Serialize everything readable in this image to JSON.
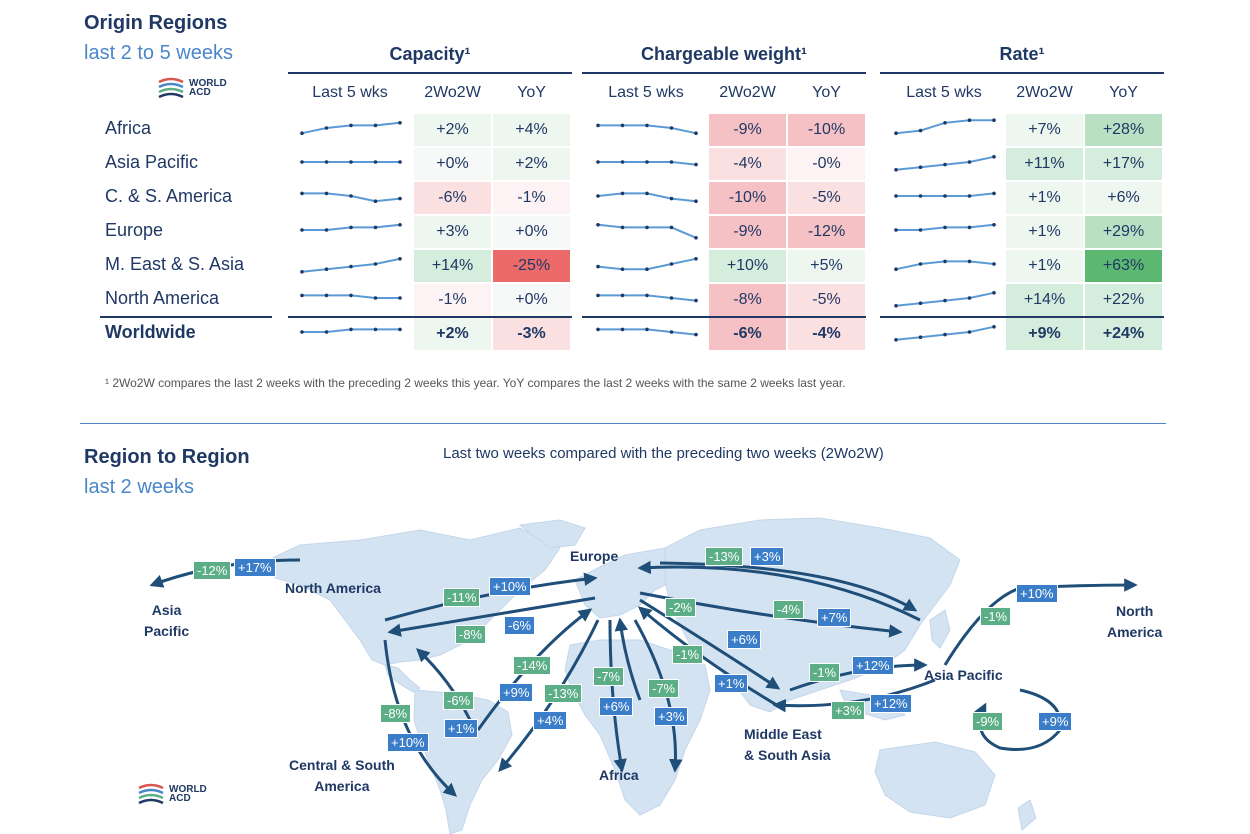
{
  "origin": {
    "title": "Origin Regions",
    "subtitle": "last 2 to 5 weeks",
    "groups": [
      {
        "title": "Capacity¹"
      },
      {
        "title": "Chargeable weight¹"
      },
      {
        "title": "Rate¹"
      }
    ],
    "subheads": [
      "Last 5 wks",
      "2Wo2W",
      "YoY"
    ]
  },
  "logo": {
    "line1": "WORLD",
    "line2": "ACD"
  },
  "chart_data": [
    {
      "type": "table",
      "title": "Origin Regions – last 2 to 5 weeks",
      "columns": [
        "Capacity 2Wo2W",
        "Capacity YoY",
        "Chargeable weight 2Wo2W",
        "Chargeable weight YoY",
        "Rate 2Wo2W",
        "Rate YoY"
      ],
      "rows": [
        {
          "label": "Africa",
          "values": [
            "+2%",
            "+4%",
            "-9%",
            "-10%",
            "+7%",
            "+28%"
          ],
          "spark": [
            [
              3,
              5,
              6,
              6,
              7
            ],
            [
              6,
              6,
              6,
              5,
              3
            ],
            [
              3,
              4,
              7,
              8,
              8
            ]
          ]
        },
        {
          "label": "Asia Pacific",
          "values": [
            "+0%",
            "+2%",
            "-4%",
            "-0%",
            "+11%",
            "+17%"
          ],
          "spark": [
            [
              5,
              5,
              5,
              5,
              5
            ],
            [
              5,
              5,
              5,
              5,
              4
            ],
            [
              2,
              3,
              4,
              5,
              7
            ]
          ]
        },
        {
          "label": "C. & S. America",
          "values": [
            "-6%",
            "-1%",
            "-10%",
            "-5%",
            "+1%",
            "+6%"
          ],
          "spark": [
            [
              6,
              6,
              5,
              3,
              4
            ],
            [
              5,
              6,
              6,
              4,
              3
            ],
            [
              5,
              5,
              5,
              5,
              6
            ]
          ]
        },
        {
          "label": "Europe",
          "values": [
            "+3%",
            "+0%",
            "-9%",
            "-12%",
            "+1%",
            "+29%"
          ],
          "spark": [
            [
              5,
              5,
              6,
              6,
              7
            ],
            [
              7,
              6,
              6,
              6,
              2
            ],
            [
              5,
              5,
              6,
              6,
              7
            ]
          ]
        },
        {
          "label": "M. East & S. Asia",
          "values": [
            "+14%",
            "-25%",
            "+10%",
            "+5%",
            "+1%",
            "+63%"
          ],
          "spark": [
            [
              2,
              3,
              4,
              5,
              7
            ],
            [
              4,
              3,
              3,
              5,
              7
            ],
            [
              3,
              5,
              6,
              6,
              5
            ]
          ]
        },
        {
          "label": "North America",
          "values": [
            "-1%",
            "+0%",
            "-8%",
            "-5%",
            "+14%",
            "+22%"
          ],
          "spark": [
            [
              6,
              6,
              6,
              5,
              5
            ],
            [
              6,
              6,
              6,
              5,
              4
            ],
            [
              2,
              3,
              4,
              5,
              7
            ]
          ]
        },
        {
          "label": "Worldwide",
          "values": [
            "+2%",
            "-3%",
            "-6%",
            "-4%",
            "+9%",
            "+24%"
          ],
          "spark": [
            [
              5,
              5,
              6,
              6,
              6
            ],
            [
              6,
              6,
              6,
              5,
              4
            ],
            [
              2,
              3,
              4,
              5,
              7
            ]
          ],
          "bold": true
        }
      ],
      "cell_colors": [
        [
          "#eef6f0",
          "#eef6f0",
          "#f6c1c5",
          "#f6c1c5",
          "#eef6f0",
          "#b9e0c2"
        ],
        [
          "#f7f9f8",
          "#eef6f0",
          "#fbe0e2",
          "#fdf3f4",
          "#d5eddc",
          "#d5eddc"
        ],
        [
          "#fbe0e2",
          "#fdf3f4",
          "#f6c1c5",
          "#fbe0e2",
          "#eef6f0",
          "#eef6f0"
        ],
        [
          "#eef6f0",
          "#f7f9f8",
          "#f6c1c5",
          "#f6c1c5",
          "#eef6f0",
          "#b9e0c2"
        ],
        [
          "#d5eddc",
          "#ec6a6a",
          "#d5eddc",
          "#eef6f0",
          "#eef6f0",
          "#5cb870"
        ],
        [
          "#fdf3f4",
          "#f7f9f8",
          "#f6c1c5",
          "#fbe0e2",
          "#d5eddc",
          "#d5eddc"
        ],
        [
          "#eef6f0",
          "#fbe0e2",
          "#f6c1c5",
          "#fbe0e2",
          "#d5eddc",
          "#d5eddc"
        ]
      ]
    },
    {
      "type": "map",
      "title": "Last two weeks compared with the preceding two weeks (2Wo2W)",
      "regions": [
        "North America",
        "Asia Pacific",
        "Europe",
        "Middle East & South Asia",
        "Africa",
        "Central & South America"
      ],
      "flows": [
        {
          "from": "North America",
          "to": "Asia Pacific",
          "values": [
            "-12%",
            "+17%"
          ]
        },
        {
          "from": "Europe",
          "to": "Asia Pacific",
          "values": [
            "-13%",
            "+3%"
          ]
        },
        {
          "from": "North America",
          "to": "Europe",
          "values": [
            "-11%",
            "+10%"
          ]
        },
        {
          "from": "Europe",
          "to": "North America",
          "values": [
            "-8%",
            "-6%"
          ]
        },
        {
          "from": "Europe",
          "to": "Middle East & South Asia",
          "values": [
            "-2%",
            "+6%"
          ]
        },
        {
          "from": "Asia Pacific",
          "to": "Europe",
          "values": [
            "-4%",
            "+7%"
          ]
        },
        {
          "from": "Asia Pacific",
          "to": "North America",
          "values": [
            "-1%",
            "+10%"
          ]
        },
        {
          "from": "Central & South America",
          "to": "Europe",
          "values": [
            "-14%",
            "+9%"
          ]
        },
        {
          "from": "Europe",
          "to": "Central & South America",
          "values": [
            "-13%",
            "+4%"
          ]
        },
        {
          "from": "Europe",
          "to": "Africa",
          "values": [
            "-7%",
            "+6%"
          ]
        },
        {
          "from": "Africa",
          "to": "Europe",
          "values": [
            "-7%",
            "+3%"
          ]
        },
        {
          "from": "Middle East & South Asia",
          "to": "Europe",
          "values": [
            "-1%",
            "+1%"
          ]
        },
        {
          "from": "Middle East & South Asia",
          "to": "Asia Pacific",
          "values": [
            "-1%",
            "+12%"
          ]
        },
        {
          "from": "Asia Pacific",
          "to": "Middle East & South Asia",
          "values": [
            "+3%",
            "+12%"
          ]
        },
        {
          "from": "Central & South America",
          "to": "North America",
          "values": [
            "-6%",
            "+1%"
          ]
        },
        {
          "from": "North America",
          "to": "Central & South America",
          "values": [
            "-8%",
            "+10%"
          ]
        },
        {
          "from": "Asia Pacific",
          "to": "Asia Pacific",
          "values": [
            "-9%",
            "+9%"
          ]
        }
      ]
    }
  ],
  "footnote": "¹ 2Wo2W compares the last 2 weeks with the preceding 2 weeks this year. YoY compares the last 2 weeks with the same 2 weeks last year.",
  "r2r": {
    "title": "Region to Region",
    "subtitle": "last 2 weeks",
    "caption": "Last two weeks compared with the preceding two weeks (2Wo2W)"
  },
  "map_labels": {
    "asia_pacific_left_1": "Asia",
    "asia_pacific_left_2": "Pacific",
    "north_america": "North America",
    "europe": "Europe",
    "north_america_right_1": "North",
    "north_america_right_2": "America",
    "asia_pacific": "Asia Pacific",
    "middle_east_1": "Middle East",
    "middle_east_2": "& South Asia",
    "africa": "Africa",
    "csa_1": "Central & South",
    "csa_2": "America"
  },
  "map_boxes": [
    {
      "id": "na-ap-1",
      "text": "-12%",
      "color": "green"
    },
    {
      "id": "na-ap-2",
      "text": "+17%",
      "color": "blue"
    },
    {
      "id": "eu-ap-1",
      "text": "-13%",
      "color": "green"
    },
    {
      "id": "eu-ap-2",
      "text": "+3%",
      "color": "blue"
    },
    {
      "id": "na-eu-1",
      "text": "-11%",
      "color": "green"
    },
    {
      "id": "na-eu-2",
      "text": "+10%",
      "color": "blue"
    },
    {
      "id": "eu-na-1",
      "text": "-8%",
      "color": "green"
    },
    {
      "id": "eu-na-2",
      "text": "-6%",
      "color": "blue"
    },
    {
      "id": "eu-me-1",
      "text": "-2%",
      "color": "green"
    },
    {
      "id": "eu-me-2",
      "text": "+6%",
      "color": "blue"
    },
    {
      "id": "ap-eu-1",
      "text": "-4%",
      "color": "green"
    },
    {
      "id": "ap-eu-2",
      "text": "+7%",
      "color": "blue"
    },
    {
      "id": "ap-na-1",
      "text": "-1%",
      "color": "green"
    },
    {
      "id": "ap-na-2",
      "text": "+10%",
      "color": "blue"
    },
    {
      "id": "csa-eu-1",
      "text": "-14%",
      "color": "green"
    },
    {
      "id": "csa-eu-2",
      "text": "+9%",
      "color": "blue"
    },
    {
      "id": "eu-csa-1",
      "text": "-13%",
      "color": "green"
    },
    {
      "id": "eu-csa-2",
      "text": "+4%",
      "color": "blue"
    },
    {
      "id": "eu-af-1",
      "text": "-7%",
      "color": "green"
    },
    {
      "id": "eu-af-2",
      "text": "+6%",
      "color": "blue"
    },
    {
      "id": "af-eu-1",
      "text": "-7%",
      "color": "green"
    },
    {
      "id": "af-eu-2",
      "text": "+3%",
      "color": "blue"
    },
    {
      "id": "me-eu-1",
      "text": "-1%",
      "color": "green"
    },
    {
      "id": "me-eu-2",
      "text": "+1%",
      "color": "blue"
    },
    {
      "id": "me-ap-1",
      "text": "-1%",
      "color": "green"
    },
    {
      "id": "me-ap-2",
      "text": "+12%",
      "color": "blue"
    },
    {
      "id": "ap-me-1",
      "text": "+3%",
      "color": "green"
    },
    {
      "id": "ap-me-2",
      "text": "+12%",
      "color": "blue"
    },
    {
      "id": "csa-na-1",
      "text": "-6%",
      "color": "green"
    },
    {
      "id": "csa-na-2",
      "text": "+1%",
      "color": "blue"
    },
    {
      "id": "na-csa-1",
      "text": "-8%",
      "color": "green"
    },
    {
      "id": "na-csa-2",
      "text": "+10%",
      "color": "blue"
    },
    {
      "id": "ap-ap-1",
      "text": "-9%",
      "color": "green"
    },
    {
      "id": "ap-ap-2",
      "text": "+9%",
      "color": "blue"
    }
  ],
  "colors": {
    "navy": "#1f3864",
    "accent": "#4a86c8",
    "green_box": "#5cae86",
    "blue_box": "#3a7dc9",
    "map_land": "#d3e3f2",
    "arrow": "#1f4e79"
  }
}
